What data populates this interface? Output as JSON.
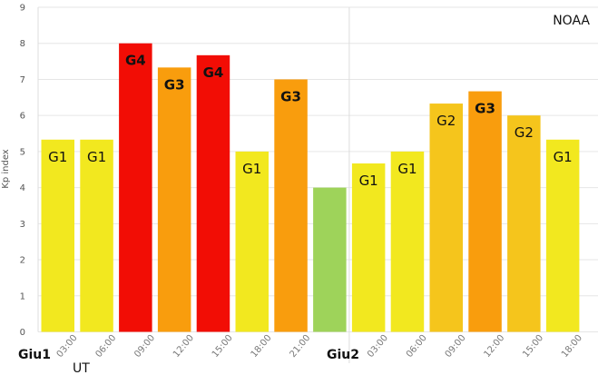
{
  "chart_data": {
    "type": "bar",
    "source_label": "NOAA",
    "ylabel": "Kp index",
    "xlabel": "UT",
    "ylim": [
      0,
      9
    ],
    "yticks": [
      0,
      1,
      2,
      3,
      4,
      5,
      6,
      7,
      8,
      9
    ],
    "day_labels": [
      "Giu1",
      "Giu2"
    ],
    "time_ticks": [
      "03:00",
      "06:00",
      "09:00",
      "12:00",
      "15:00",
      "18:00",
      "21:00",
      "03:00",
      "06:00",
      "09:00",
      "12:00",
      "15:00",
      "18:00"
    ],
    "bars": [
      {
        "value": 5.33,
        "label": "G1",
        "color": "#f2e81f",
        "bold": false
      },
      {
        "value": 5.33,
        "label": "G1",
        "color": "#f2e81f",
        "bold": false
      },
      {
        "value": 8.0,
        "label": "G4",
        "color": "#f20d05",
        "bold": true
      },
      {
        "value": 7.33,
        "label": "G3",
        "color": "#f99d0d",
        "bold": true
      },
      {
        "value": 7.67,
        "label": "G4",
        "color": "#f20d05",
        "bold": true
      },
      {
        "value": 5.0,
        "label": "G1",
        "color": "#f2e81f",
        "bold": false
      },
      {
        "value": 7.0,
        "label": "G3",
        "color": "#f99d0d",
        "bold": true
      },
      {
        "value": 4.0,
        "label": "",
        "color": "#9ed35a",
        "bold": false
      },
      {
        "value": 4.67,
        "label": "G1",
        "color": "#f2e81f",
        "bold": false
      },
      {
        "value": 5.0,
        "label": "G1",
        "color": "#f2e81f",
        "bold": false
      },
      {
        "value": 6.33,
        "label": "G2",
        "color": "#f5c51c",
        "bold": false
      },
      {
        "value": 6.67,
        "label": "G3",
        "color": "#f99d0d",
        "bold": true
      },
      {
        "value": 6.0,
        "label": "G2",
        "color": "#f5c51c",
        "bold": false
      },
      {
        "value": 5.33,
        "label": "G1",
        "color": "#f2e81f",
        "bold": false
      }
    ],
    "grid": true
  }
}
